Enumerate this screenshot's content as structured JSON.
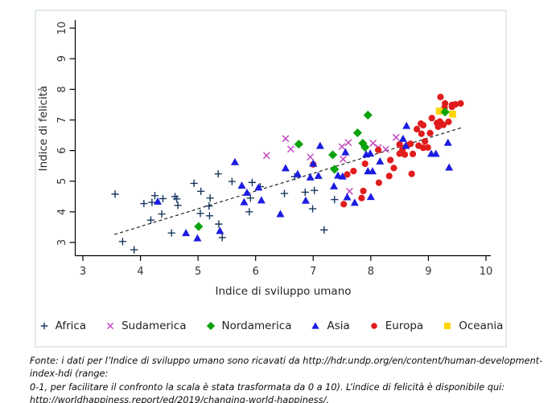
{
  "figure": {
    "background": "#ffffff",
    "border_color": "#e3eaee",
    "axis_color": "#000000",
    "text_color": "#2b2b2b"
  },
  "chart_data": {
    "type": "scatter",
    "title": "",
    "xlabel": "Indice di sviluppo umano",
    "ylabel": "Indice di felicità",
    "xlim": [
      2.85,
      10.08
    ],
    "ylim": [
      2.55,
      10.26
    ],
    "x_ticks": [
      3,
      4,
      5,
      6,
      7,
      8,
      9,
      10
    ],
    "y_ticks": [
      3,
      4,
      5,
      6,
      7,
      8,
      9,
      10
    ],
    "grid": false,
    "legend_position": "bottom",
    "trend_line": {
      "style": "dashed",
      "color": "#111111",
      "from": [
        3.55,
        3.26
      ],
      "to": [
        9.58,
        6.75
      ]
    },
    "draw_order": [
      "Africa",
      "Sudamerica",
      "Europa",
      "Asia",
      "Oceania",
      "Nordamerica"
    ],
    "series": [
      {
        "name": "Africa",
        "marker": "plus",
        "color": "#17375e",
        "points": [
          [
            3.56,
            4.58
          ],
          [
            3.69,
            3.03
          ],
          [
            3.89,
            2.76
          ],
          [
            4.06,
            4.27
          ],
          [
            4.2,
            4.31
          ],
          [
            4.25,
            4.53
          ],
          [
            4.39,
            4.43
          ],
          [
            4.37,
            3.93
          ],
          [
            4.6,
            4.5
          ],
          [
            4.63,
            4.42
          ],
          [
            4.65,
            4.21
          ],
          [
            4.18,
            3.73
          ],
          [
            4.54,
            3.31
          ],
          [
            4.93,
            4.93
          ],
          [
            5.05,
            4.67
          ],
          [
            5.21,
            4.45
          ],
          [
            5.19,
            4.19
          ],
          [
            5.04,
            3.95
          ],
          [
            5.2,
            3.87
          ],
          [
            5.35,
            5.24
          ],
          [
            5.59,
            4.99
          ],
          [
            5.94,
            4.96
          ],
          [
            6.08,
            4.82
          ],
          [
            5.91,
            4.45
          ],
          [
            6.5,
            4.6
          ],
          [
            5.89,
            4.0
          ],
          [
            5.36,
            3.6
          ],
          [
            5.42,
            3.16
          ],
          [
            6.86,
            4.64
          ],
          [
            7.02,
            4.7
          ],
          [
            6.99,
            4.1
          ],
          [
            7.37,
            4.4
          ],
          [
            7.19,
            3.41
          ],
          [
            6.68,
            5.15
          ]
        ]
      },
      {
        "name": "Sudamerica",
        "marker": "x",
        "color": "#bf40bf",
        "points": [
          [
            6.19,
            5.84
          ],
          [
            6.52,
            6.39
          ],
          [
            6.61,
            6.05
          ],
          [
            6.95,
            5.79
          ],
          [
            7.5,
            6.13
          ],
          [
            7.61,
            6.26
          ],
          [
            8.04,
            6.24
          ],
          [
            8.13,
            6.1
          ],
          [
            8.26,
            6.04
          ],
          [
            8.44,
            6.43
          ],
          [
            7.52,
            5.72
          ],
          [
            7.63,
            4.67
          ]
        ]
      },
      {
        "name": "Nordamerica",
        "marker": "diamond",
        "color": "#0ba30b",
        "points": [
          [
            5.01,
            3.52
          ],
          [
            6.75,
            6.21
          ],
          [
            7.34,
            5.86
          ],
          [
            7.37,
            5.39
          ],
          [
            7.77,
            6.58
          ],
          [
            7.86,
            6.24
          ],
          [
            7.9,
            6.11
          ],
          [
            7.95,
            7.16
          ],
          [
            9.29,
            7.26
          ]
        ]
      },
      {
        "name": "Asia",
        "marker": "triangle",
        "color": "#1c1ce0",
        "points": [
          [
            4.3,
            4.34
          ],
          [
            4.79,
            3.31
          ],
          [
            4.99,
            3.14
          ],
          [
            5.38,
            3.38
          ],
          [
            5.64,
            5.63
          ],
          [
            5.76,
            4.86
          ],
          [
            5.85,
            4.63
          ],
          [
            5.8,
            4.32
          ],
          [
            6.05,
            4.8
          ],
          [
            6.1,
            4.38
          ],
          [
            6.43,
            3.93
          ],
          [
            6.52,
            5.43
          ],
          [
            6.73,
            5.24
          ],
          [
            6.87,
            4.37
          ],
          [
            6.95,
            5.13
          ],
          [
            7.09,
            5.18
          ],
          [
            7.12,
            6.16
          ],
          [
            7.0,
            5.58
          ],
          [
            7.36,
            4.84
          ],
          [
            7.43,
            5.19
          ],
          [
            7.51,
            5.16
          ],
          [
            7.56,
            5.95
          ],
          [
            7.59,
            4.48
          ],
          [
            7.72,
            4.3
          ],
          [
            7.92,
            5.88
          ],
          [
            7.99,
            5.91
          ],
          [
            7.95,
            5.33
          ],
          [
            8.03,
            5.33
          ],
          [
            8.0,
            4.49
          ],
          [
            8.16,
            5.65
          ],
          [
            8.56,
            6.39
          ],
          [
            8.61,
            6.16
          ],
          [
            8.62,
            6.81
          ],
          [
            9.05,
            5.9
          ],
          [
            9.13,
            5.9
          ],
          [
            9.34,
            6.26
          ],
          [
            9.36,
            5.45
          ]
        ]
      },
      {
        "name": "Europa",
        "marker": "circle",
        "color": "#e11c1c",
        "points": [
          [
            7.0,
            5.55
          ],
          [
            7.53,
            4.25
          ],
          [
            7.59,
            5.22
          ],
          [
            7.7,
            5.33
          ],
          [
            7.84,
            4.45
          ],
          [
            7.87,
            4.68
          ],
          [
            7.9,
            5.57
          ],
          [
            8.14,
            4.95
          ],
          [
            8.13,
            6.02
          ],
          [
            8.32,
            5.17
          ],
          [
            8.34,
            5.69
          ],
          [
            8.4,
            5.43
          ],
          [
            8.5,
            5.9
          ],
          [
            8.5,
            6.2
          ],
          [
            8.55,
            6.03
          ],
          [
            8.59,
            5.87
          ],
          [
            8.63,
            6.17
          ],
          [
            8.71,
            5.24
          ],
          [
            8.73,
            5.89
          ],
          [
            8.69,
            6.22
          ],
          [
            8.83,
            6.16
          ],
          [
            8.87,
            6.88
          ],
          [
            8.88,
            6.55
          ],
          [
            8.91,
            6.09
          ],
          [
            8.94,
            6.3
          ],
          [
            8.99,
            6.1
          ],
          [
            8.8,
            6.7
          ],
          [
            8.91,
            6.83
          ],
          [
            9.03,
            6.57
          ],
          [
            9.06,
            7.06
          ],
          [
            9.15,
            6.9
          ],
          [
            9.17,
            6.78
          ],
          [
            9.19,
            6.87
          ],
          [
            9.21,
            7.75
          ],
          [
            9.24,
            6.86
          ],
          [
            9.26,
            6.84
          ],
          [
            9.2,
            6.95
          ],
          [
            9.28,
            7.4
          ],
          [
            9.29,
            7.54
          ],
          [
            9.35,
            6.94
          ],
          [
            9.41,
            7.49
          ],
          [
            9.47,
            7.51
          ],
          [
            9.56,
            7.54
          ],
          [
            9.41,
            7.43
          ]
        ]
      },
      {
        "name": "Oceania",
        "marker": "square",
        "color": "#ffd400",
        "points": [
          [
            9.19,
            7.29
          ],
          [
            9.42,
            7.19
          ]
        ]
      }
    ]
  },
  "footnote": {
    "line1": "Fonte: i dati per l’Indice di sviluppo umano sono ricavati da http://hdr.undp.org/en/content/human-development-index-hdi (range:",
    "line2": "0-1, per facilitare il confronto la scala è stata trasformata da 0 a 10). L’indice di felicità è disponibile qui:",
    "line3": "http://worldhappiness.report/ed/2019/changing-world-happiness/."
  }
}
